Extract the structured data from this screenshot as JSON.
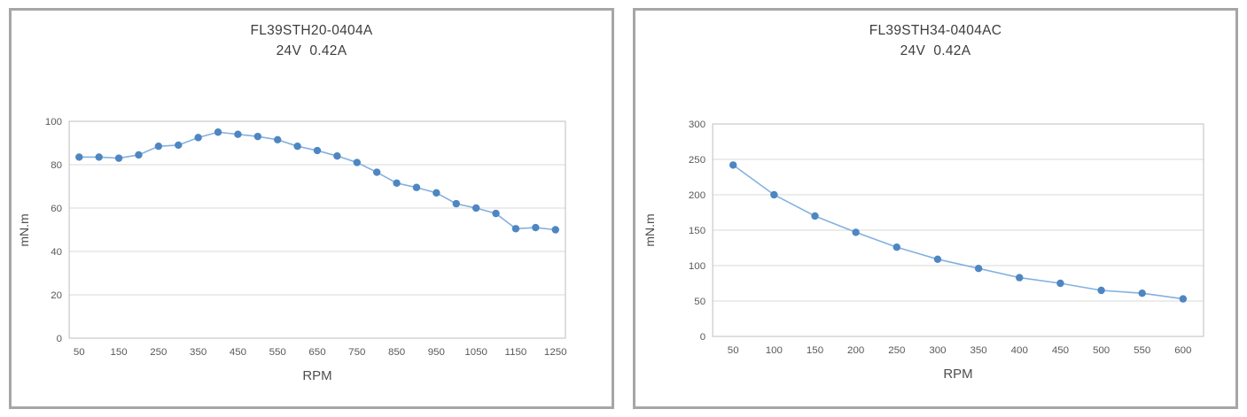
{
  "page": {
    "background": "#ffffff",
    "panel_border_color": "#a6a6a6"
  },
  "chart_data": [
    {
      "type": "line",
      "title_lines": [
        "FL39STH20-0404A",
        "24V  0.42A"
      ],
      "model": "FL39STH20-0404A",
      "rating": "24V 0.42A",
      "xlabel": "RPM",
      "ylabel": "mN.m",
      "x": [
        50,
        100,
        150,
        200,
        250,
        300,
        350,
        400,
        450,
        500,
        550,
        600,
        650,
        700,
        750,
        800,
        850,
        900,
        950,
        1000,
        1050,
        1100,
        1150,
        1200,
        1250
      ],
      "values": [
        83.5,
        83.5,
        83,
        84.5,
        88.5,
        89,
        92.5,
        95,
        94,
        93,
        91.5,
        88.5,
        86.5,
        84,
        81,
        76.5,
        71.5,
        69.5,
        67,
        62,
        60,
        57.5,
        50.5,
        51,
        50
      ],
      "ylim": [
        0,
        100
      ],
      "ytick_step": 20,
      "x_label_every": 2,
      "grid": true,
      "legend": false,
      "line_color": "#82b1e0",
      "marker_color": "#4e86c2",
      "grid_color": "#d9d9d9",
      "box_color": "#bfbfbf",
      "tick_label_color": "#595959"
    },
    {
      "type": "line",
      "title_lines": [
        "FL39STH34-0404AC",
        "24V  0.42A"
      ],
      "model": "FL39STH34-0404AC",
      "rating": "24V 0.42A",
      "xlabel": "RPM",
      "ylabel": "mN.m",
      "x": [
        50,
        100,
        150,
        200,
        250,
        300,
        350,
        400,
        450,
        500,
        550,
        600
      ],
      "values": [
        242,
        200,
        170,
        147,
        126,
        109,
        96,
        83,
        75,
        65,
        61,
        53
      ],
      "ylim": [
        0,
        300
      ],
      "ytick_step": 50,
      "x_label_every": 1,
      "grid": true,
      "legend": false,
      "line_color": "#82b1e0",
      "marker_color": "#4e86c2",
      "grid_color": "#d9d9d9",
      "box_color": "#bfbfbf",
      "tick_label_color": "#595959"
    }
  ]
}
